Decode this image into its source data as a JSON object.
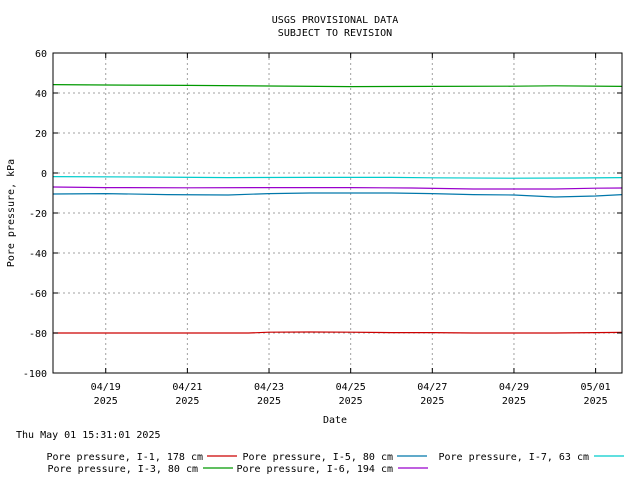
{
  "chart_data": {
    "type": "line",
    "title": [
      "USGS PROVISIONAL DATA",
      "SUBJECT TO REVISION"
    ],
    "xlabel": "Date",
    "ylabel": "Pore pressure, kPa",
    "ylim": [
      -100,
      60
    ],
    "yticks": [
      -100,
      -80,
      -60,
      -40,
      -20,
      0,
      20,
      40,
      60
    ],
    "xlim": [
      "2025-04-17T17:00",
      "2025-05-01T15:31"
    ],
    "xticks": [
      {
        "date": "2025-04-19",
        "label": [
          "04/19",
          "2025"
        ]
      },
      {
        "date": "2025-04-21",
        "label": [
          "04/21",
          "2025"
        ]
      },
      {
        "date": "2025-04-23",
        "label": [
          "04/23",
          "2025"
        ]
      },
      {
        "date": "2025-04-25",
        "label": [
          "04/25",
          "2025"
        ]
      },
      {
        "date": "2025-04-27",
        "label": [
          "04/27",
          "2025"
        ]
      },
      {
        "date": "2025-04-29",
        "label": [
          "04/29",
          "2025"
        ]
      },
      {
        "date": "2025-05-01",
        "label": [
          "05/01",
          "2025"
        ]
      }
    ],
    "grid": true,
    "legend_position": "bottom",
    "timestamp": "Thu May 01 15:31:01 2025",
    "series": [
      {
        "name": "Pore pressure, I-1, 178 cm",
        "color": "#cc0000",
        "points": [
          [
            "2025-04-17T17:00",
            -80
          ],
          [
            "2025-04-20T00:00",
            -80
          ],
          [
            "2025-04-22T12:00",
            -80
          ],
          [
            "2025-04-23T00:00",
            -79.6
          ],
          [
            "2025-04-24T00:00",
            -79.5
          ],
          [
            "2025-04-25T00:00",
            -79.6
          ],
          [
            "2025-04-26T00:00",
            -79.8
          ],
          [
            "2025-04-27T00:00",
            -79.8
          ],
          [
            "2025-04-28T00:00",
            -80
          ],
          [
            "2025-04-30T00:00",
            -80
          ],
          [
            "2025-05-01T15:31",
            -79.7
          ]
        ]
      },
      {
        "name": "Pore pressure, I-3, 80 cm",
        "color": "#009900",
        "points": [
          [
            "2025-04-17T17:00",
            44.2
          ],
          [
            "2025-04-19T00:00",
            44
          ],
          [
            "2025-04-21T00:00",
            43.8
          ],
          [
            "2025-04-23T00:00",
            43.5
          ],
          [
            "2025-04-25T00:00",
            43.2
          ],
          [
            "2025-04-27T00:00",
            43.3
          ],
          [
            "2025-04-29T00:00",
            43.4
          ],
          [
            "2025-04-30T00:00",
            43.6
          ],
          [
            "2025-05-01T15:31",
            43.3
          ]
        ]
      },
      {
        "name": "Pore pressure, I-5, 80 cm",
        "color": "#0077aa",
        "points": [
          [
            "2025-04-17T17:00",
            -10.5
          ],
          [
            "2025-04-19T00:00",
            -10.3
          ],
          [
            "2025-04-20T12:00",
            -10.8
          ],
          [
            "2025-04-22T00:00",
            -11
          ],
          [
            "2025-04-23T00:00",
            -10.3
          ],
          [
            "2025-04-24T00:00",
            -10
          ],
          [
            "2025-04-26T00:00",
            -10
          ],
          [
            "2025-04-27T00:00",
            -10.3
          ],
          [
            "2025-04-28T00:00",
            -10.8
          ],
          [
            "2025-04-29T00:00",
            -11
          ],
          [
            "2025-04-30T00:00",
            -12
          ],
          [
            "2025-05-01T00:00",
            -11.5
          ],
          [
            "2025-05-01T15:31",
            -10.8
          ]
        ]
      },
      {
        "name": "Pore pressure, I-6, 194 cm",
        "color": "#9900cc",
        "points": [
          [
            "2025-04-17T17:00",
            -7
          ],
          [
            "2025-04-19T00:00",
            -7.3
          ],
          [
            "2025-04-21T00:00",
            -7.4
          ],
          [
            "2025-04-23T00:00",
            -7.3
          ],
          [
            "2025-04-25T00:00",
            -7.3
          ],
          [
            "2025-04-26T12:00",
            -7.5
          ],
          [
            "2025-04-28T00:00",
            -8
          ],
          [
            "2025-04-30T00:00",
            -8
          ],
          [
            "2025-05-01T00:00",
            -7.6
          ],
          [
            "2025-05-01T15:31",
            -7.5
          ]
        ]
      },
      {
        "name": "Pore pressure, I-7, 63 cm",
        "color": "#00cccc",
        "points": [
          [
            "2025-04-17T17:00",
            -1.8
          ],
          [
            "2025-04-20T00:00",
            -2
          ],
          [
            "2025-04-22T00:00",
            -2.3
          ],
          [
            "2025-04-24T00:00",
            -2.2
          ],
          [
            "2025-04-26T00:00",
            -2.2
          ],
          [
            "2025-04-27T00:00",
            -2.4
          ],
          [
            "2025-04-29T00:00",
            -2.6
          ],
          [
            "2025-04-30T12:00",
            -2.5
          ],
          [
            "2025-05-01T15:31",
            -2.3
          ]
        ]
      }
    ]
  }
}
